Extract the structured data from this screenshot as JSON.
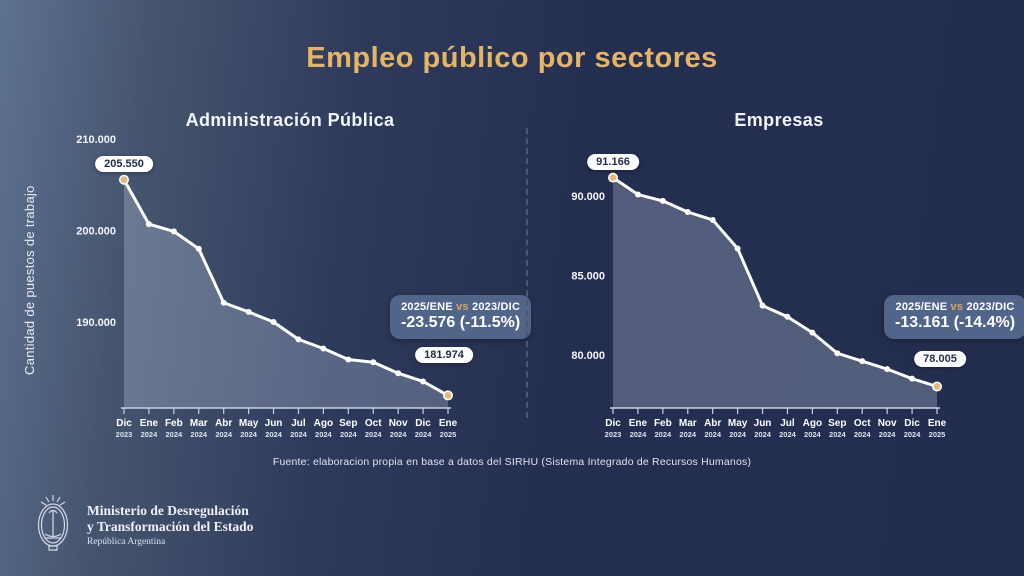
{
  "title": "Empleo público por sectores",
  "y_axis_label": "Cantidad de puestos de trabajo",
  "source": "Fuente: elaboracion propia en base a datos del SIRHU (Sistema Integrado de Recursos Humanos)",
  "colors": {
    "background_dark": "#242e50",
    "background_light_edge": "#5d7191",
    "title_gold": "#e5b566",
    "line": "#ffffff",
    "endpoint_fill": "#e2b977",
    "area_fill": "rgba(203,214,236,0.28)",
    "badge_background": "#516489",
    "badge_vs_gold": "#d9a85c",
    "axis": "#c9d1e0"
  },
  "ministry": {
    "name_line1": "Ministerio de Desregulación",
    "name_line2": "y Transformación del Estado",
    "country": "República Argentina"
  },
  "chart_data": [
    {
      "type": "area",
      "title": "Administración Pública",
      "categories": [
        "Dic 2023",
        "Ene 2024",
        "Feb 2024",
        "Mar 2024",
        "Abr 2024",
        "May 2024",
        "Jun 2024",
        "Jul 2024",
        "Ago 2024",
        "Sep 2024",
        "Oct 2024",
        "Nov 2024",
        "Dic 2024",
        "Ene 2025"
      ],
      "values": [
        205550,
        200700,
        199900,
        198000,
        192100,
        191100,
        190000,
        188100,
        187100,
        185900,
        185600,
        184400,
        183500,
        181974
      ],
      "start_label": "205.550",
      "end_label": "181.974",
      "y_ticks": [
        {
          "value": 210000,
          "label": "210.000"
        },
        {
          "value": 200000,
          "label": "200.000"
        },
        {
          "value": 190000,
          "label": "190.000"
        }
      ],
      "ylim": [
        180600,
        210000
      ],
      "grid": false,
      "legend": "none",
      "badge": {
        "period": "2025/ENE",
        "vs": "vs",
        "baseline": "2023/DIC",
        "delta": "-23.576 (-11.5%)"
      }
    },
    {
      "type": "area",
      "title": "Empresas",
      "categories": [
        "Dic 2023",
        "Ene 2024",
        "Feb 2024",
        "Mar 2024",
        "Abr 2024",
        "May 2024",
        "Jun 2024",
        "Jul 2024",
        "Ago 2024",
        "Sep 2024",
        "Oct 2024",
        "Nov 2024",
        "Dic 2024",
        "Ene 2025"
      ],
      "values": [
        91166,
        90100,
        89700,
        89000,
        88500,
        86700,
        83100,
        82400,
        81400,
        80100,
        79600,
        79100,
        78500,
        78005
      ],
      "start_label": "91.166",
      "end_label": "78.005",
      "y_ticks": [
        {
          "value": 90000,
          "label": "90.000"
        },
        {
          "value": 85000,
          "label": "85.000"
        },
        {
          "value": 80000,
          "label": "80.000"
        }
      ],
      "ylim": [
        76650,
        93600
      ],
      "grid": false,
      "legend": "none",
      "badge": {
        "period": "2025/ENE",
        "vs": "vs",
        "baseline": "2023/DIC",
        "delta": "-13.161 (-14.4%)"
      }
    }
  ]
}
